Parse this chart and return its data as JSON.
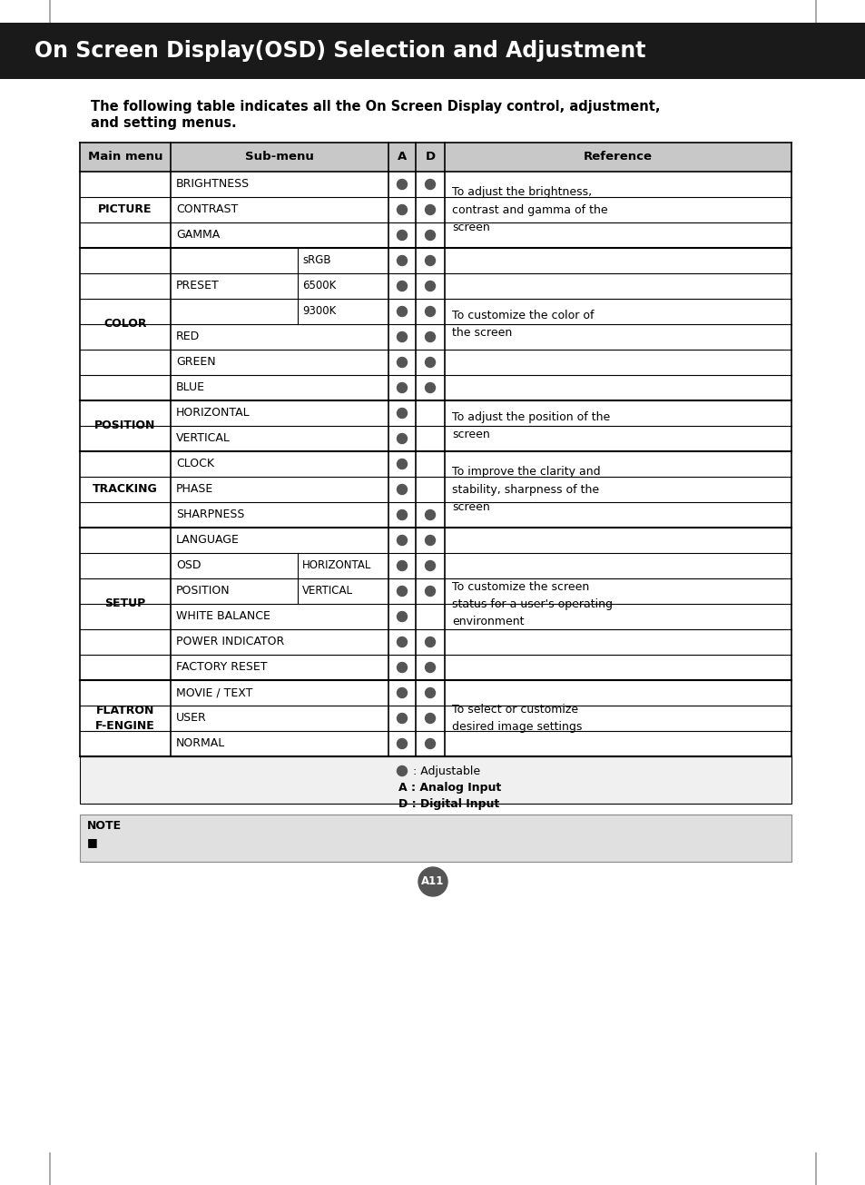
{
  "title": "On Screen Display(OSD) Selection and Adjustment",
  "intro_text_line1": "The following table indicates all the On Screen Display control, adjustment,",
  "intro_text_line2": "and setting menus.",
  "bg_color": "#ffffff",
  "title_bg": "#1a1a1a",
  "title_color": "#ffffff",
  "header_bg": "#c8c8c8",
  "dot_color": "#555555",
  "rows": [
    {
      "main": "PICTURE",
      "sub1": "BRIGHTNESS",
      "sub2": "",
      "A": true,
      "D": true,
      "ref": "To adjust the brightness,\ncontrast and gamma of the\nscreen",
      "section_start": true,
      "section_end": false
    },
    {
      "main": "PICTURE",
      "sub1": "CONTRAST",
      "sub2": "",
      "A": true,
      "D": true,
      "ref": "",
      "section_start": false,
      "section_end": false
    },
    {
      "main": "PICTURE",
      "sub1": "GAMMA",
      "sub2": "",
      "A": true,
      "D": true,
      "ref": "",
      "section_start": false,
      "section_end": true
    },
    {
      "main": "COLOR",
      "sub1": "PRESET",
      "sub2": "sRGB",
      "A": true,
      "D": true,
      "ref": "To customize the color of\nthe screen",
      "section_start": true,
      "section_end": false
    },
    {
      "main": "COLOR",
      "sub1": "PRESET",
      "sub2": "6500K",
      "A": true,
      "D": true,
      "ref": "",
      "section_start": false,
      "section_end": false
    },
    {
      "main": "COLOR",
      "sub1": "PRESET",
      "sub2": "9300K",
      "A": true,
      "D": true,
      "ref": "",
      "section_start": false,
      "section_end": false
    },
    {
      "main": "COLOR",
      "sub1": "RED",
      "sub2": "",
      "A": true,
      "D": true,
      "ref": "",
      "section_start": false,
      "section_end": false
    },
    {
      "main": "COLOR",
      "sub1": "GREEN",
      "sub2": "",
      "A": true,
      "D": true,
      "ref": "",
      "section_start": false,
      "section_end": false
    },
    {
      "main": "COLOR",
      "sub1": "BLUE",
      "sub2": "",
      "A": true,
      "D": true,
      "ref": "",
      "section_start": false,
      "section_end": true
    },
    {
      "main": "POSITION",
      "sub1": "HORIZONTAL",
      "sub2": "",
      "A": true,
      "D": false,
      "ref": "To adjust the position of the\nscreen",
      "section_start": true,
      "section_end": false
    },
    {
      "main": "POSITION",
      "sub1": "VERTICAL",
      "sub2": "",
      "A": true,
      "D": false,
      "ref": "",
      "section_start": false,
      "section_end": true
    },
    {
      "main": "TRACKING",
      "sub1": "CLOCK",
      "sub2": "",
      "A": true,
      "D": false,
      "ref": "To improve the clarity and\nstability, sharpness of the\nscreen",
      "section_start": true,
      "section_end": false
    },
    {
      "main": "TRACKING",
      "sub1": "PHASE",
      "sub2": "",
      "A": true,
      "D": false,
      "ref": "",
      "section_start": false,
      "section_end": false
    },
    {
      "main": "TRACKING",
      "sub1": "SHARPNESS",
      "sub2": "",
      "A": true,
      "D": true,
      "ref": "",
      "section_start": false,
      "section_end": true
    },
    {
      "main": "SETUP",
      "sub1": "LANGUAGE",
      "sub2": "",
      "A": true,
      "D": true,
      "ref": "To customize the screen\nstatus for a user's operating\nenvironment",
      "section_start": true,
      "section_end": false
    },
    {
      "main": "SETUP",
      "sub1": "OSD",
      "sub2": "HORIZONTAL",
      "A": true,
      "D": true,
      "ref": "",
      "section_start": false,
      "section_end": false
    },
    {
      "main": "SETUP",
      "sub1": "POSITION",
      "sub2": "VERTICAL",
      "A": true,
      "D": true,
      "ref": "",
      "section_start": false,
      "section_end": false
    },
    {
      "main": "SETUP",
      "sub1": "WHITE BALANCE",
      "sub2": "",
      "A": true,
      "D": false,
      "ref": "",
      "section_start": false,
      "section_end": false
    },
    {
      "main": "SETUP",
      "sub1": "POWER INDICATOR",
      "sub2": "",
      "A": true,
      "D": true,
      "ref": "",
      "section_start": false,
      "section_end": false
    },
    {
      "main": "SETUP",
      "sub1": "FACTORY RESET",
      "sub2": "",
      "A": true,
      "D": true,
      "ref": "",
      "section_start": false,
      "section_end": true
    },
    {
      "main": "FLATRON\nF-ENGINE",
      "sub1": "MOVIE / TEXT",
      "sub2": "",
      "A": true,
      "D": true,
      "ref": "To select or customize\ndesired image settings",
      "section_start": true,
      "section_end": false
    },
    {
      "main": "FLATRON\nF-ENGINE",
      "sub1": "USER",
      "sub2": "",
      "A": true,
      "D": true,
      "ref": "",
      "section_start": false,
      "section_end": false
    },
    {
      "main": "FLATRON\nF-ENGINE",
      "sub1": "NORMAL",
      "sub2": "",
      "A": true,
      "D": true,
      "ref": "",
      "section_start": false,
      "section_end": true
    }
  ],
  "sections": [
    {
      "label": "PICTURE",
      "start": 0,
      "end": 2
    },
    {
      "label": "COLOR",
      "start": 3,
      "end": 8
    },
    {
      "label": "POSITION",
      "start": 9,
      "end": 10
    },
    {
      "label": "TRACKING",
      "start": 11,
      "end": 13
    },
    {
      "label": "SETUP",
      "start": 14,
      "end": 19
    },
    {
      "label": "FLATRON\nF-ENGINE",
      "start": 20,
      "end": 22
    }
  ],
  "legend_dot_text": ": Adjustable",
  "legend_A_text": "A : Analog Input",
  "legend_D_text": "D : Digital Input",
  "page_num": "A11"
}
